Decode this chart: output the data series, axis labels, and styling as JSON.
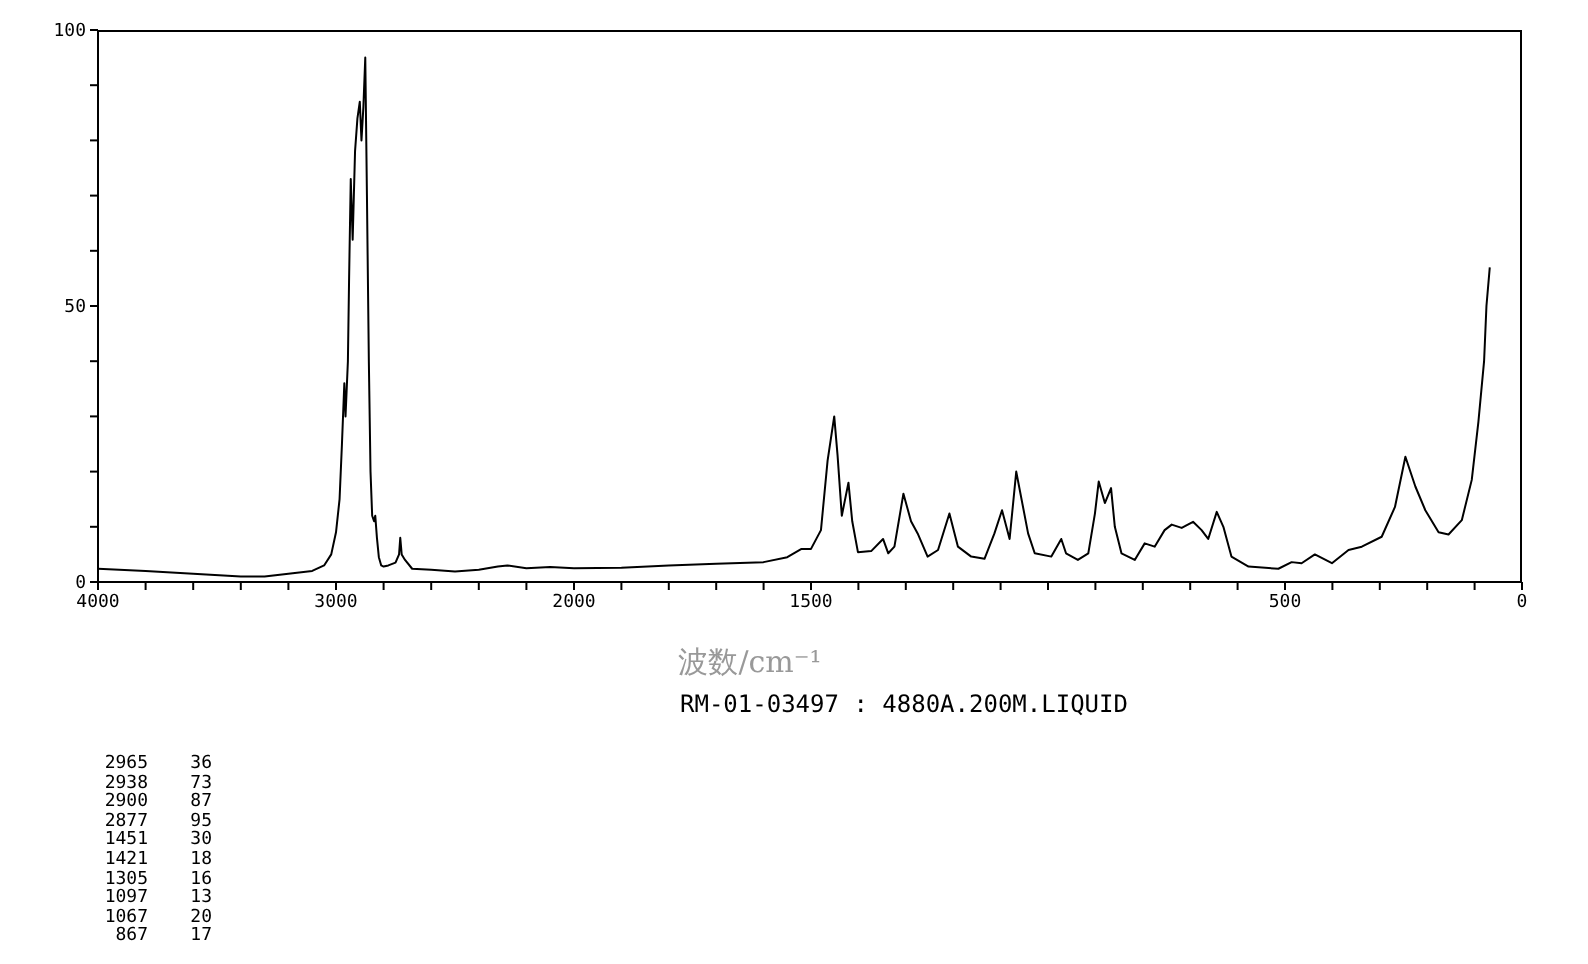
{
  "chart_data": [
    {
      "type": "line",
      "xlim": [
        4000,
        2000
      ],
      "ylim": [
        0,
        100
      ],
      "xticks": [
        4000,
        {
          "value": 3800,
          "label": null
        },
        {
          "value": 3600,
          "label": null
        },
        {
          "value": 3400,
          "label": null
        },
        {
          "value": 3200,
          "label": null
        },
        3000,
        {
          "value": 2800,
          "label": null
        },
        {
          "value": 2600,
          "label": null
        },
        {
          "value": 2400,
          "label": null
        },
        {
          "value": 2200,
          "label": null
        },
        2000
      ],
      "yticks": [
        0,
        {
          "value": 10,
          "label": null
        },
        {
          "value": 20,
          "label": null
        },
        {
          "value": 30,
          "label": null
        },
        {
          "value": 40,
          "label": null
        },
        50,
        {
          "value": 60,
          "label": null
        },
        {
          "value": 70,
          "label": null
        },
        {
          "value": 80,
          "label": null
        },
        {
          "value": 90,
          "label": null
        },
        100
      ],
      "grid": false,
      "legend": false,
      "marker": "none",
      "line_style": "solid",
      "annotations": [
        "2965 36",
        "2938 73",
        "2900 87",
        "2877 95",
        "1451 30",
        "1421 18",
        "1305 16",
        "1097 13",
        "1067 20",
        "867 17"
      ],
      "series": [
        {
          "color": "#000000",
          "x": [
            4000,
            3800,
            3600,
            3400,
            3300,
            3200,
            3100,
            3050,
            3020,
            3000,
            2985,
            2975,
            2965,
            2960,
            2950,
            2945,
            2938,
            2930,
            2920,
            2910,
            2900,
            2893,
            2885,
            2877,
            2870,
            2862,
            2855,
            2848,
            2840,
            2835,
            2828,
            2820,
            2810,
            2800,
            2780,
            2750,
            2735,
            2730,
            2724,
            2710,
            2680,
            2600,
            2500,
            2400,
            2320,
            2280,
            2200,
            2100,
            2000
          ],
          "values": [
            2.4,
            2.0,
            1.5,
            1.0,
            1.0,
            1.5,
            2.0,
            3.0,
            5,
            9,
            15,
            25,
            36,
            30,
            40,
            55,
            73,
            62,
            78,
            84,
            87,
            80,
            86,
            95,
            70,
            40,
            20,
            12,
            11,
            12,
            8,
            4.5,
            3,
            2.8,
            3.0,
            3.5,
            5,
            8,
            5,
            4,
            2.4,
            2.2,
            1.9,
            2.2,
            2.8,
            3.0,
            2.5,
            2.7,
            2.5
          ]
        }
      ]
    },
    {
      "type": "line",
      "xlim": [
        2000,
        0
      ],
      "ylim": [
        0,
        100
      ],
      "tick_labels": "x",
      "xticks": [
        {
          "value": 2000,
          "label": null
        },
        {
          "value": 1900,
          "label": null
        },
        {
          "value": 1800,
          "label": null
        },
        {
          "value": 1700,
          "label": null
        },
        {
          "value": 1600,
          "label": null
        },
        1500,
        {
          "value": 1400,
          "label": null
        },
        {
          "value": 1300,
          "label": null
        },
        {
          "value": 1200,
          "label": null
        },
        {
          "value": 1100,
          "label": null
        },
        {
          "value": 1000,
          "label": null
        },
        {
          "value": 900,
          "label": null
        },
        {
          "value": 800,
          "label": null
        },
        {
          "value": 700,
          "label": null
        },
        {
          "value": 600,
          "label": null
        },
        500,
        {
          "value": 400,
          "label": null
        },
        {
          "value": 300,
          "label": null
        },
        {
          "value": 200,
          "label": null
        },
        {
          "value": 100,
          "label": null
        },
        0
      ],
      "xlabel": "波数/cm⁻¹",
      "annotations": [
        "RM-01-03497 : 4880A.200M.LIQUID"
      ],
      "grid": false,
      "legend": false,
      "marker": "none",
      "line_style": "solid",
      "series": [
        {
          "color": "#000000",
          "x": [
            2000,
            1900,
            1800,
            1700,
            1600,
            1550,
            1520,
            1500,
            1479,
            1465,
            1451,
            1444,
            1435,
            1421,
            1413,
            1401,
            1373,
            1348,
            1337,
            1324,
            1305,
            1289,
            1275,
            1254,
            1232,
            1208,
            1190,
            1162,
            1134,
            1113,
            1097,
            1081,
            1067,
            1042,
            1028,
            993,
            972,
            962,
            937,
            915,
            901,
            893,
            880,
            867,
            859,
            845,
            817,
            796,
            775,
            754,
            739,
            718,
            694,
            676,
            662,
            644,
            630,
            613,
            577,
            514,
            486,
            465,
            437,
            401,
            366,
            338,
            296,
            268,
            246,
            225,
            204,
            176,
            155,
            127,
            106,
            92,
            80,
            75,
            68
          ],
          "values": [
            2.5,
            2.6,
            3.0,
            3.3,
            3.6,
            4.5,
            6,
            6,
            9.4,
            22,
            30,
            23,
            12,
            18,
            11,
            5.4,
            5.6,
            7.8,
            5.2,
            6.4,
            16,
            11,
            8.8,
            4.6,
            5.8,
            12.4,
            6.4,
            4.6,
            4.2,
            8.8,
            13,
            7.8,
            20,
            8.8,
            5.2,
            4.6,
            7.8,
            5.2,
            4.0,
            5.2,
            12.4,
            18.2,
            14.3,
            17,
            10,
            5.2,
            4,
            7,
            6.4,
            9.4,
            10.4,
            9.8,
            10.9,
            9.4,
            7.8,
            12.7,
            10,
            4.6,
            2.8,
            2.4,
            3.6,
            3.4,
            5.0,
            3.4,
            5.8,
            6.4,
            8.2,
            13.6,
            22.7,
            17.3,
            13,
            9,
            8.6,
            11.2,
            18.5,
            29,
            40,
            50,
            57
          ]
        }
      ]
    }
  ]
}
